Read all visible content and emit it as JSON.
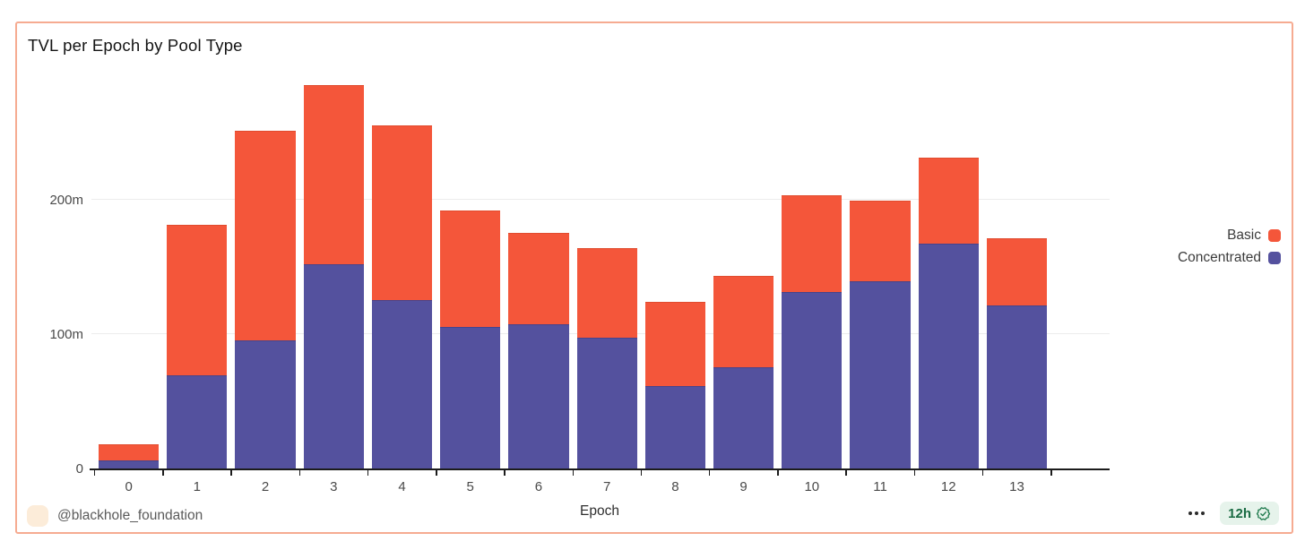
{
  "card": {
    "title": "TVL per Epoch by Pool Type"
  },
  "chart_data": {
    "type": "bar",
    "stacked": true,
    "title": "TVL per Epoch by Pool Type",
    "xlabel": "Epoch",
    "ylabel": "",
    "categories": [
      "0",
      "1",
      "2",
      "3",
      "4",
      "5",
      "6",
      "7",
      "8",
      "9",
      "10",
      "11",
      "12",
      "13"
    ],
    "series": [
      {
        "name": "Basic",
        "color": "#f4563a",
        "border_color": "#e04b2e",
        "values": [
          12,
          112,
          156,
          133,
          130,
          87,
          68,
          67,
          63,
          68,
          72,
          60,
          64,
          50
        ]
      },
      {
        "name": "Concentrated",
        "color": "#54519e",
        "border_color": "#46438b",
        "values": [
          6,
          69,
          95,
          152,
          125,
          105,
          107,
          97,
          61,
          75,
          131,
          139,
          167,
          121
        ]
      }
    ],
    "stack_totals": [
      18,
      181,
      251,
      285,
      255,
      192,
      175,
      164,
      124,
      143,
      203,
      199,
      231,
      171
    ],
    "stack_order_bottom_to_top": [
      "Concentrated",
      "Basic"
    ],
    "value_unit": "m",
    "y_ticks": [
      {
        "value": 0,
        "label": "0"
      },
      {
        "value": 100,
        "label": "100m"
      },
      {
        "value": 200,
        "label": "200m"
      }
    ],
    "ylim": [
      0,
      293
    ],
    "grid": true,
    "legend_position": "right"
  },
  "footer": {
    "handle": "@blackhole_foundation",
    "menu_icon": "ellipsis-menu-icon",
    "badge": {
      "label": "12h",
      "icon": "verified-seal-icon",
      "text_color": "#1a6b43",
      "bg_color": "#e6f3eb"
    }
  },
  "colors": {
    "card_border": "#f6ab91",
    "axis_line": "#1c1c1c",
    "gridline": "#ececec",
    "tick_text": "#4a4a4a",
    "avatar_bg": "#fcecd9"
  }
}
